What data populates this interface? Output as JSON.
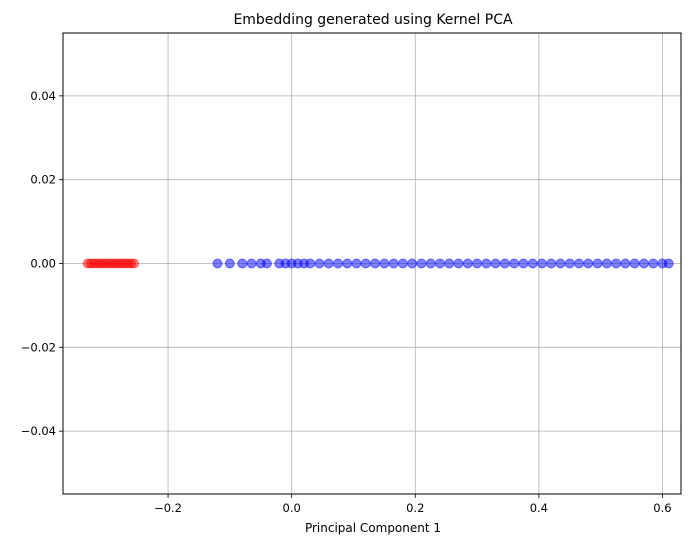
{
  "chart_data": {
    "type": "scatter",
    "title": "Embedding generated using Kernel PCA",
    "xlabel": "Principal Component 1",
    "ylabel": "",
    "xlim": [
      -0.37,
      0.63
    ],
    "ylim": [
      -0.055,
      0.055
    ],
    "xticks": [
      -0.2,
      0.0,
      0.2,
      0.4,
      0.6
    ],
    "xtick_labels": [
      "−0.2",
      "0.0",
      "0.2",
      "0.4",
      "0.6"
    ],
    "yticks": [
      -0.04,
      -0.02,
      0.0,
      0.02,
      0.04
    ],
    "ytick_labels": [
      "−0.04",
      "−0.02",
      "0.00",
      "0.02",
      "0.04"
    ],
    "grid": true,
    "series": [
      {
        "color": "#ff0000",
        "alpha": 0.5,
        "x": [
          -0.33,
          -0.325,
          -0.32,
          -0.315,
          -0.31,
          -0.305,
          -0.3,
          -0.295,
          -0.29,
          -0.285,
          -0.28,
          -0.275,
          -0.27,
          -0.265,
          -0.26,
          -0.255
        ],
        "y": [
          0,
          0,
          0,
          0,
          0,
          0,
          0,
          0,
          0,
          0,
          0,
          0,
          0,
          0,
          0,
          0
        ]
      },
      {
        "color": "#0000ff",
        "alpha": 0.5,
        "x": [
          -0.12,
          -0.1,
          -0.08,
          -0.065,
          -0.05,
          -0.04,
          -0.02,
          -0.01,
          0.0,
          0.01,
          0.02,
          0.03,
          0.045,
          0.06,
          0.075,
          0.09,
          0.105,
          0.12,
          0.135,
          0.15,
          0.165,
          0.18,
          0.195,
          0.21,
          0.225,
          0.24,
          0.255,
          0.27,
          0.285,
          0.3,
          0.315,
          0.33,
          0.345,
          0.36,
          0.375,
          0.39,
          0.405,
          0.42,
          0.435,
          0.45,
          0.465,
          0.48,
          0.495,
          0.51,
          0.525,
          0.54,
          0.555,
          0.57,
          0.585,
          0.6,
          0.61
        ],
        "y": [
          0,
          0,
          0,
          0,
          0,
          0,
          0,
          0,
          0,
          0,
          0,
          0,
          0,
          0,
          0,
          0,
          0,
          0,
          0,
          0,
          0,
          0,
          0,
          0,
          0,
          0,
          0,
          0,
          0,
          0,
          0,
          0,
          0,
          0,
          0,
          0,
          0,
          0,
          0,
          0,
          0,
          0,
          0,
          0,
          0,
          0,
          0,
          0,
          0,
          0,
          0
        ]
      }
    ]
  }
}
